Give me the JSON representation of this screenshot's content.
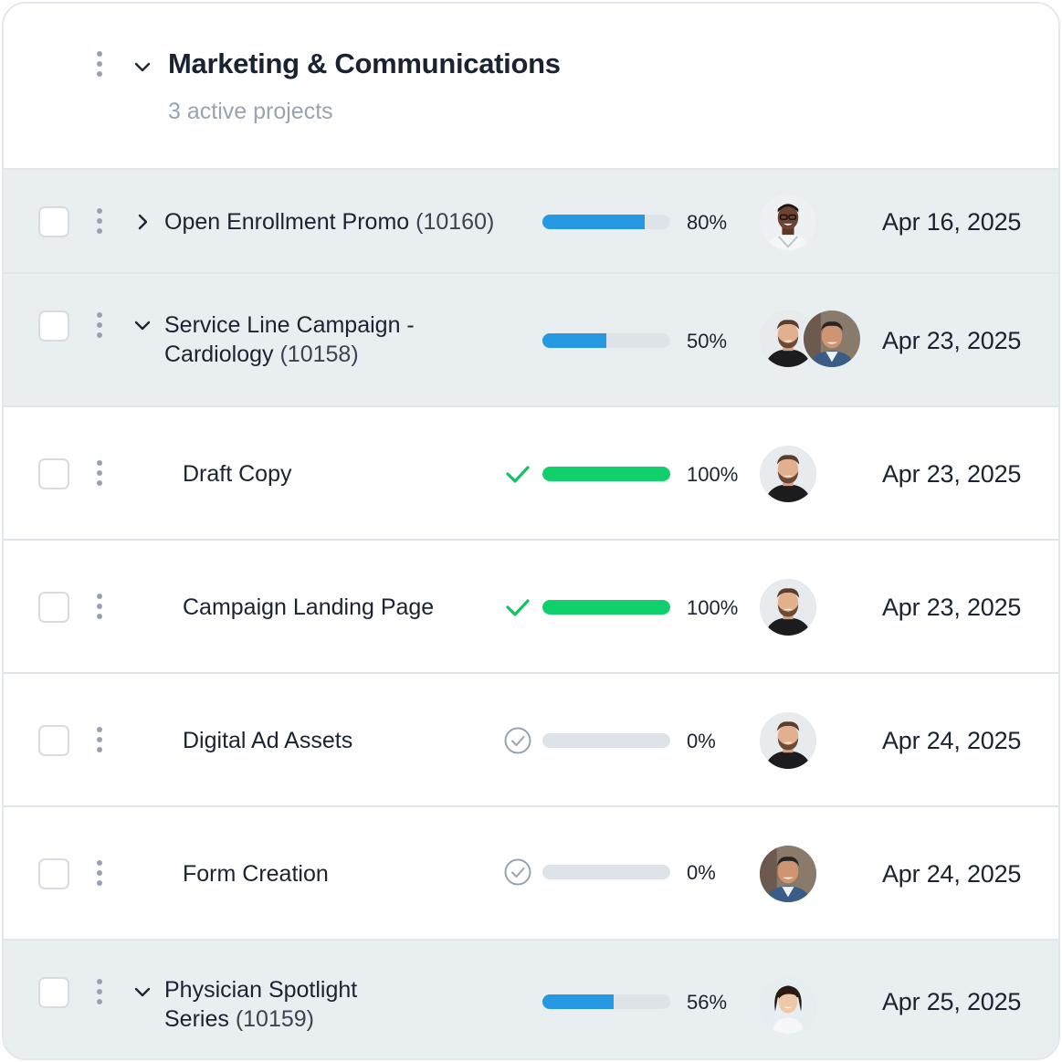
{
  "group": {
    "title": "Marketing & Communications",
    "subtitle": "3 active projects"
  },
  "rows": [
    {
      "name": "Open Enrollment Promo",
      "code": "(10160)",
      "type": "parent",
      "expanded": false,
      "progress": 80,
      "percent_label": "80%",
      "progress_color": "#2498e0",
      "status_icon": "none",
      "assignees": [
        "doctor-avatar"
      ],
      "date": "Apr 16, 2025"
    },
    {
      "name_line1": "Service Line Campaign -",
      "name_line2": "Cardiology",
      "code": "(10158)",
      "type": "parent",
      "expanded": true,
      "progress": 50,
      "percent_label": "50%",
      "progress_color": "#2498e0",
      "status_icon": "none",
      "assignees": [
        "bearded-man-avatar",
        "older-man-avatar"
      ],
      "date": "Apr 23, 2025"
    },
    {
      "name": "Draft Copy",
      "type": "child",
      "progress": 100,
      "percent_label": "100%",
      "progress_color": "#10d06b",
      "status_icon": "check-icon",
      "assignees": [
        "bearded-man-avatar"
      ],
      "date": "Apr 23, 2025"
    },
    {
      "name": "Campaign Landing Page",
      "type": "child",
      "progress": 100,
      "percent_label": "100%",
      "progress_color": "#10d06b",
      "status_icon": "check-icon",
      "assignees": [
        "bearded-man-avatar"
      ],
      "date": "Apr 23, 2025"
    },
    {
      "name": "Digital Ad Assets",
      "type": "child",
      "progress": 0,
      "percent_label": "0%",
      "progress_color": "#dde3e8",
      "status_icon": "circle-check-icon",
      "assignees": [
        "bearded-man-avatar"
      ],
      "date": "Apr 24, 2025"
    },
    {
      "name": "Form Creation",
      "type": "child",
      "progress": 0,
      "percent_label": "0%",
      "progress_color": "#dde3e8",
      "status_icon": "circle-check-icon",
      "assignees": [
        "older-man-avatar"
      ],
      "date": "Apr 24, 2025"
    },
    {
      "name_line1": "Physician Spotlight",
      "name_line2": "Series",
      "code": "(10159)",
      "type": "parent",
      "expanded": true,
      "progress": 56,
      "percent_label": "56%",
      "progress_color": "#2498e0",
      "status_icon": "none",
      "assignees": [
        "woman-avatar"
      ],
      "date": "Apr 25, 2025"
    }
  ]
}
